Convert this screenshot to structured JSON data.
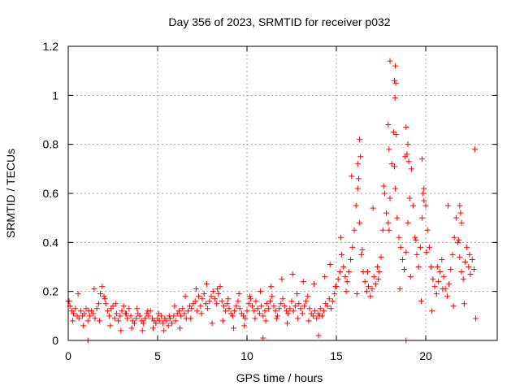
{
  "chart_data": {
    "type": "scatter",
    "title": "Day 356 of 2023, SRMTID for receiver p032",
    "xlabel": "GPS time / hours",
    "ylabel": "SRMTID / TECUs",
    "xlim": [
      0,
      24
    ],
    "ylim": [
      0,
      1.2
    ],
    "xticks": [
      0,
      5,
      10,
      15,
      20
    ],
    "yticks": [
      0,
      0.2,
      0.4,
      0.6,
      0.8,
      1,
      1.2
    ],
    "xtick_labels": [
      "0",
      "5",
      "10",
      "15",
      "20"
    ],
    "ytick_labels": [
      "0",
      "0.2",
      "0.4",
      "0.6",
      "0.8",
      "1",
      "1.2"
    ],
    "grid": true,
    "marker": "+",
    "series": [
      {
        "name": "SRMTID",
        "color": "#ff0000",
        "x": [
          0.0,
          0.1,
          0.2,
          0.3,
          0.4,
          0.5,
          0.6,
          0.7,
          0.8,
          0.9,
          1.0,
          1.1,
          1.2,
          1.3,
          1.4,
          1.5,
          1.6,
          1.7,
          1.8,
          1.9,
          2.0,
          2.1,
          2.2,
          2.3,
          2.4,
          2.5,
          2.6,
          2.7,
          2.8,
          2.9,
          3.0,
          3.1,
          3.2,
          3.3,
          3.4,
          3.5,
          3.6,
          3.7,
          3.8,
          3.9,
          4.0,
          4.1,
          4.2,
          4.3,
          4.4,
          4.5,
          4.6,
          4.7,
          4.8,
          4.9,
          5.0,
          5.1,
          5.2,
          5.3,
          5.4,
          5.5,
          5.6,
          5.7,
          5.8,
          5.9,
          6.0,
          6.1,
          6.2,
          6.3,
          6.4,
          6.5,
          6.6,
          6.7,
          6.8,
          6.9,
          7.0,
          7.1,
          7.2,
          7.3,
          7.4,
          7.5,
          7.6,
          7.7,
          7.8,
          7.9,
          8.0,
          8.1,
          8.2,
          8.3,
          8.4,
          8.5,
          8.6,
          8.7,
          8.8,
          8.9,
          9.0,
          9.1,
          9.2,
          9.3,
          9.4,
          9.5,
          9.6,
          9.7,
          9.8,
          9.9,
          10.0,
          10.1,
          10.2,
          10.3,
          10.4,
          10.5,
          10.6,
          10.7,
          10.8,
          10.9,
          11.0,
          11.1,
          11.2,
          11.3,
          11.4,
          11.5,
          11.6,
          11.7,
          11.8,
          11.9,
          12.0,
          12.1,
          12.2,
          12.3,
          12.4,
          12.5,
          12.6,
          12.7,
          12.8,
          12.9,
          13.0,
          13.1,
          13.2,
          13.3,
          13.4,
          13.5,
          13.6,
          13.7,
          13.8,
          13.9,
          14.0,
          14.1,
          14.2,
          14.3,
          14.4,
          14.5,
          14.6,
          14.7,
          14.8,
          14.9,
          15.0,
          15.1,
          15.2,
          15.3,
          15.4,
          15.5,
          15.6,
          15.7,
          15.8,
          15.9,
          16.0,
          16.1,
          16.2,
          16.3,
          16.4,
          16.5,
          16.6,
          16.7,
          16.8,
          16.9,
          17.0,
          17.1,
          17.2,
          17.3,
          17.4,
          17.5,
          17.6,
          17.7,
          17.8,
          17.9,
          18.0,
          18.1,
          18.2,
          18.3,
          18.4,
          18.5,
          18.6,
          18.7,
          18.8,
          18.9,
          19.0,
          19.1,
          19.2,
          19.3,
          19.4,
          19.5,
          19.6,
          19.7,
          19.8,
          19.9,
          20.0,
          20.1,
          20.2,
          20.3,
          20.4,
          20.5,
          20.6,
          20.7,
          20.8,
          20.9,
          21.0,
          21.1,
          21.2,
          21.3,
          21.4,
          21.5,
          21.6,
          21.7,
          21.8,
          21.9,
          22.0,
          22.1,
          22.2,
          22.3,
          22.4,
          22.5,
          22.6,
          22.7,
          22.8,
          0.05,
          0.25,
          0.55,
          0.85,
          1.15,
          1.45,
          1.75,
          2.05,
          2.35,
          2.65,
          2.95,
          3.25,
          3.55,
          3.85,
          4.15,
          4.45,
          4.75,
          5.05,
          5.35,
          5.65,
          5.95,
          6.25,
          6.55,
          6.85,
          7.15,
          7.45,
          7.75,
          8.05,
          8.35,
          8.65,
          8.95,
          9.25,
          9.55,
          9.85,
          10.15,
          10.45,
          10.75,
          11.05,
          11.35,
          11.65,
          11.95,
          12.25,
          12.55,
          12.85,
          13.15,
          13.45,
          13.75,
          14.05,
          14.35,
          14.65,
          14.95,
          15.25,
          15.55,
          15.85,
          16.15,
          16.45,
          16.75,
          17.05,
          17.35,
          17.65,
          17.95,
          18.25,
          18.55,
          18.85,
          19.15,
          19.45,
          19.75,
          20.05,
          20.35,
          20.65,
          20.95,
          21.25,
          21.55,
          21.85,
          22.15,
          22.45,
          22.75,
          16.2,
          16.25,
          16.3,
          16.35,
          17.9,
          17.95,
          18.0,
          18.25,
          18.28,
          18.3,
          18.32,
          18.35,
          18.9,
          18.95,
          19.0,
          19.05,
          19.8,
          19.85,
          19.9,
          21.9,
          21.95,
          22.0,
          1.1,
          10.9,
          14.0,
          18.9
        ],
        "y": [
          0.16,
          0.14,
          0.12,
          0.11,
          0.13,
          0.1,
          0.09,
          0.12,
          0.1,
          0.11,
          0.13,
          0.08,
          0.1,
          0.12,
          0.11,
          0.09,
          0.13,
          0.15,
          0.19,
          0.22,
          0.18,
          0.15,
          0.12,
          0.1,
          0.13,
          0.14,
          0.09,
          0.11,
          0.08,
          0.1,
          0.12,
          0.14,
          0.11,
          0.09,
          0.13,
          0.1,
          0.08,
          0.07,
          0.09,
          0.11,
          0.1,
          0.08,
          0.07,
          0.09,
          0.11,
          0.1,
          0.12,
          0.09,
          0.08,
          0.07,
          0.09,
          0.08,
          0.1,
          0.07,
          0.09,
          0.08,
          0.06,
          0.09,
          0.07,
          0.1,
          0.08,
          0.11,
          0.12,
          0.1,
          0.13,
          0.11,
          0.09,
          0.12,
          0.14,
          0.13,
          0.15,
          0.16,
          0.12,
          0.18,
          0.14,
          0.17,
          0.19,
          0.15,
          0.13,
          0.16,
          0.18,
          0.2,
          0.17,
          0.15,
          0.19,
          0.22,
          0.16,
          0.14,
          0.12,
          0.15,
          0.13,
          0.11,
          0.1,
          0.12,
          0.14,
          0.16,
          0.13,
          0.11,
          0.1,
          0.09,
          0.12,
          0.15,
          0.17,
          0.14,
          0.12,
          0.16,
          0.13,
          0.11,
          0.14,
          0.1,
          0.12,
          0.15,
          0.13,
          0.16,
          0.18,
          0.14,
          0.12,
          0.1,
          0.13,
          0.15,
          0.17,
          0.14,
          0.12,
          0.11,
          0.13,
          0.16,
          0.12,
          0.14,
          0.19,
          0.15,
          0.13,
          0.11,
          0.14,
          0.16,
          0.18,
          0.13,
          0.11,
          0.1,
          0.12,
          0.09,
          0.11,
          0.13,
          0.1,
          0.12,
          0.15,
          0.14,
          0.17,
          0.13,
          0.16,
          0.19,
          0.22,
          0.25,
          0.28,
          0.35,
          0.3,
          0.26,
          0.24,
          0.28,
          0.33,
          0.38,
          0.45,
          0.55,
          0.62,
          0.48,
          0.35,
          0.28,
          0.24,
          0.2,
          0.22,
          0.18,
          0.21,
          0.26,
          0.23,
          0.3,
          0.28,
          0.34,
          0.45,
          0.6,
          0.52,
          0.48,
          0.58,
          0.72,
          0.85,
          0.62,
          0.5,
          0.42,
          0.38,
          0.33,
          0.29,
          0.36,
          0.48,
          0.58,
          0.7,
          0.55,
          0.42,
          0.35,
          0.3,
          0.38,
          0.5,
          0.62,
          0.55,
          0.45,
          0.38,
          0.3,
          0.25,
          0.22,
          0.19,
          0.24,
          0.28,
          0.33,
          0.26,
          0.21,
          0.18,
          0.23,
          0.29,
          0.35,
          0.42,
          0.5,
          0.4,
          0.34,
          0.28,
          0.25,
          0.32,
          0.38,
          0.3,
          0.27,
          0.33,
          0.29,
          0.09,
          0.16,
          0.08,
          0.19,
          0.06,
          0.12,
          0.21,
          0.08,
          0.17,
          0.06,
          0.15,
          0.04,
          0.11,
          0.05,
          0.13,
          0.04,
          0.12,
          0.05,
          0.11,
          0.04,
          0.1,
          0.14,
          0.05,
          0.18,
          0.09,
          0.21,
          0.11,
          0.23,
          0.07,
          0.21,
          0.08,
          0.17,
          0.05,
          0.19,
          0.06,
          0.18,
          0.09,
          0.2,
          0.08,
          0.22,
          0.09,
          0.25,
          0.07,
          0.27,
          0.09,
          0.24,
          0.08,
          0.23,
          0.1,
          0.26,
          0.31,
          0.22,
          0.42,
          0.2,
          0.67,
          0.19,
          0.37,
          0.28,
          0.54,
          0.25,
          0.63,
          0.45,
          0.71,
          0.21,
          0.75,
          0.26,
          0.41,
          0.16,
          0.36,
          0.12,
          0.3,
          0.21,
          0.55,
          0.14,
          0.41,
          0.15,
          0.35,
          0.78,
          0.72,
          0.66,
          0.82,
          0.75,
          0.88,
          0.78,
          1.14,
          1.06,
          0.99,
          1.12,
          1.05,
          0.84,
          0.87,
          0.76,
          0.8,
          0.73,
          0.74,
          0.6,
          0.57,
          0.55,
          0.52,
          0.48,
          0.0,
          0.01,
          0.02,
          0.0
        ]
      }
    ]
  }
}
